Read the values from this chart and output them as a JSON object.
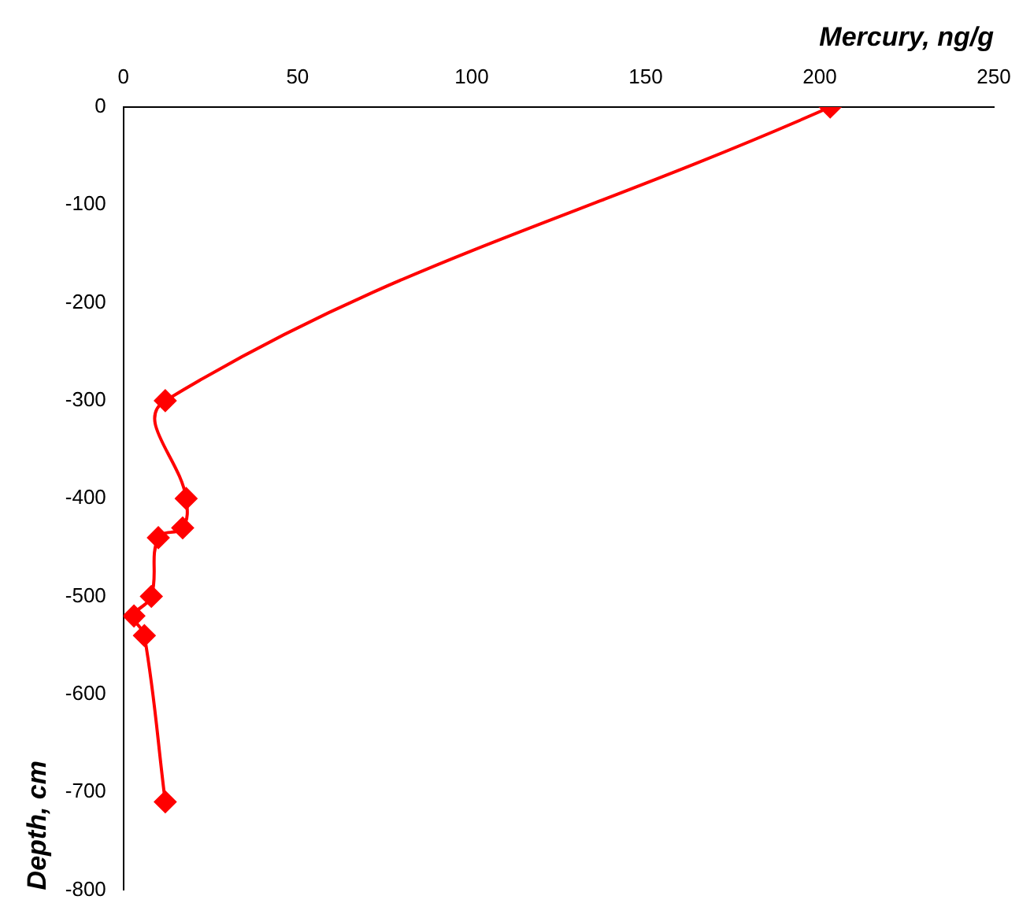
{
  "chart_data": {
    "type": "line",
    "xlabel": "Mercury, ng/g",
    "ylabel": "Depth, cm",
    "x": [
      203,
      12,
      18,
      17,
      10,
      8,
      3,
      6,
      12
    ],
    "series": [
      {
        "color": "#ff0000",
        "values": [
          0,
          -300,
          -400,
          -430,
          -440,
          -500,
          -520,
          -540,
          -710
        ]
      }
    ],
    "xlim": [
      0,
      250
    ],
    "xticks": [
      0,
      50,
      100,
      150,
      200,
      250
    ],
    "ylim": [
      -800,
      0
    ],
    "yticks": [
      0,
      -100,
      -200,
      -300,
      -400,
      -500,
      -600,
      -700,
      -800
    ],
    "grid": false,
    "legend": false,
    "marker": "diamond",
    "line_style": "solid"
  }
}
